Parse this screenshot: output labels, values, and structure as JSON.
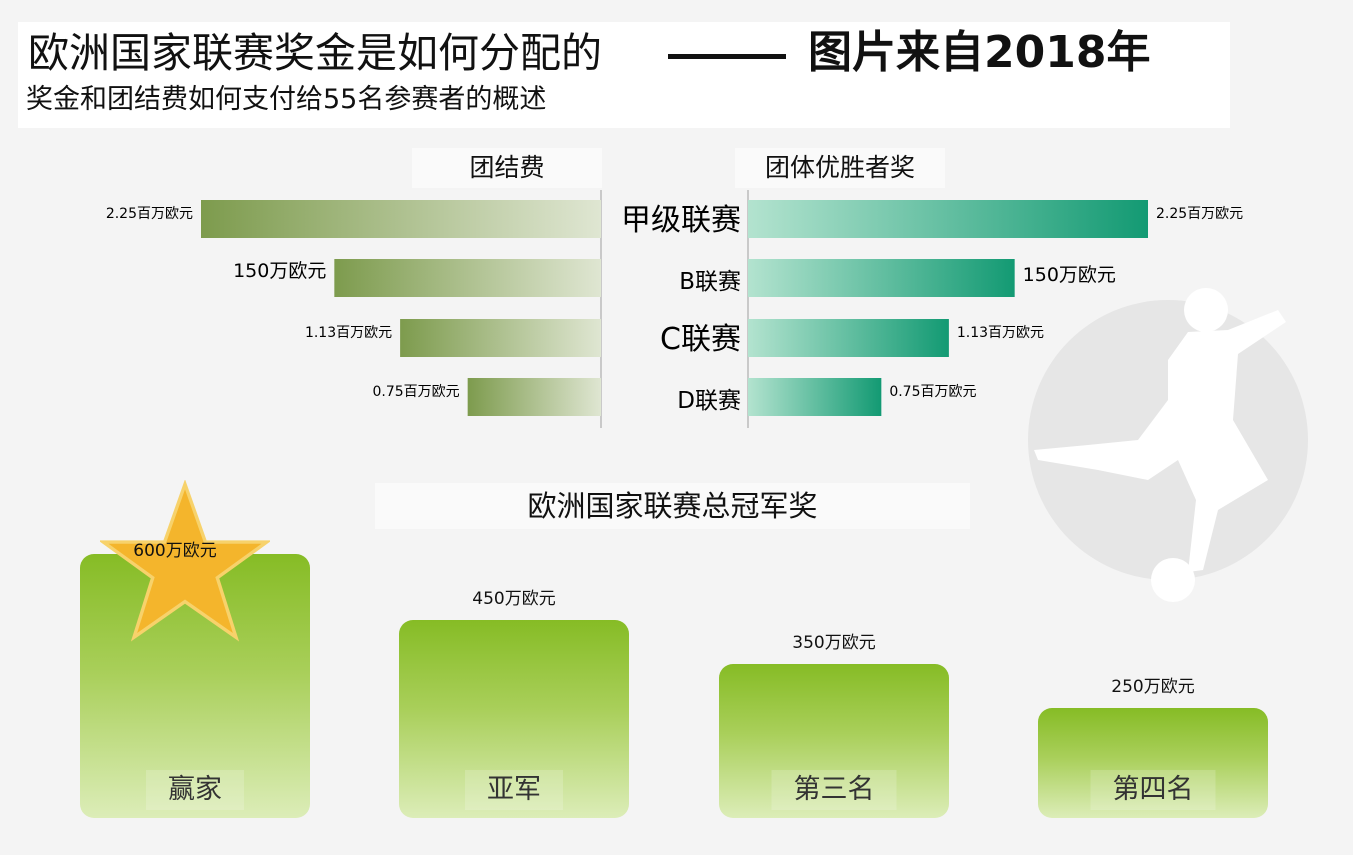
{
  "header": {
    "title_main": "欧洲国家联赛奖金是如何分配的",
    "title_source": "图片来自2018年",
    "subtitle": "奖金和团结费如何支付给55名参赛者的概述"
  },
  "colors": {
    "solidarity_bar": "#7d9b4d",
    "winner_bar": "#139a73",
    "podium": "#86bc25",
    "star": "#f4b52c"
  },
  "icons": {
    "player": "soccer-player-silhouette",
    "star": "star-icon"
  },
  "chart_data": [
    {
      "type": "bar",
      "orientation": "horizontal-butterfly",
      "categories": [
        "甲级联赛",
        "B联赛",
        "C联赛",
        "D联赛"
      ],
      "series": [
        {
          "name": "团结费",
          "values": [
            2.25,
            1.5,
            1.13,
            0.75
          ],
          "labels": [
            "2.25百万欧元",
            "150万欧元",
            "1.13百万欧元",
            "0.75百万欧元"
          ]
        },
        {
          "name": "团体优胜者奖",
          "values": [
            2.25,
            1.5,
            1.13,
            0.75
          ],
          "labels": [
            "2.25百万欧元",
            "150万欧元",
            "1.13百万欧元",
            "0.75百万欧元"
          ]
        }
      ],
      "unit": "百万欧元"
    },
    {
      "type": "bar",
      "title": "欧洲国家联赛总冠军奖",
      "categories": [
        "赢家",
        "亚军",
        "第三名",
        "第四名"
      ],
      "values": [
        6,
        4.5,
        3.5,
        2.5
      ],
      "labels": [
        "600万欧元",
        "450万欧元",
        "350万欧元",
        "250万欧元"
      ],
      "unit": "百万欧元"
    }
  ]
}
